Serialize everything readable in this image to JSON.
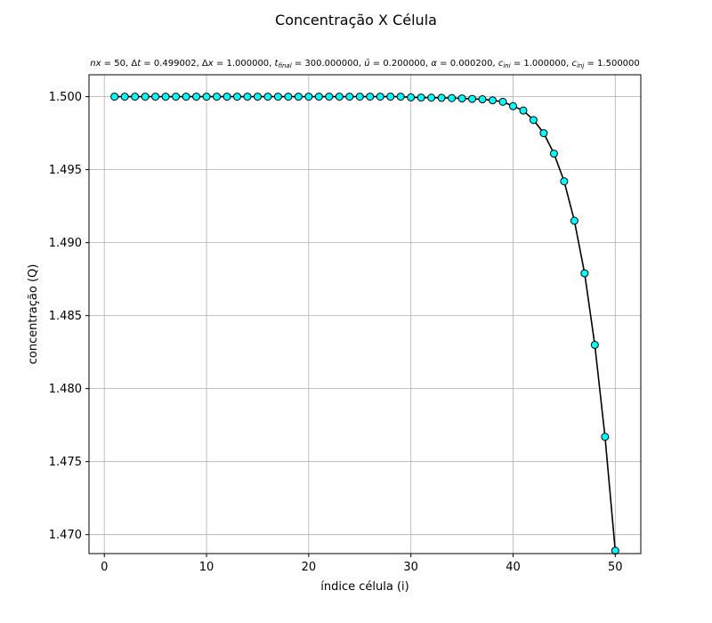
{
  "chart_data": {
    "type": "line",
    "title": "Concentração X Célula",
    "subtitle": "nx = 50, Δt = 0.499002, Δx = 1.000000, t_final = 300.000000, ū = 0.200000, α = 0.000200, c_ini = 1.000000, c_inj = 1.500000",
    "subtitle_parts": {
      "nx": "50",
      "dt": "0.499002",
      "dx": "1.000000",
      "t_final": "300.000000",
      "u": "0.200000",
      "alpha": "0.000200",
      "c_ini": "1.000000",
      "c_inj": "1.500000"
    },
    "xlabel": "índice célula (i)",
    "ylabel": "concentração (Q)",
    "xlim": [
      -1.5,
      52.5
    ],
    "ylim": [
      1.4687,
      1.5015
    ],
    "xticks": [
      0,
      10,
      20,
      30,
      40,
      50
    ],
    "yticks": [
      1.47,
      1.475,
      1.48,
      1.485,
      1.49,
      1.495,
      1.5
    ],
    "xtick_labels": [
      "0",
      "10",
      "20",
      "30",
      "40",
      "50"
    ],
    "ytick_labels": [
      "1.470",
      "1.475",
      "1.480",
      "1.485",
      "1.490",
      "1.495",
      "1.500"
    ],
    "grid": true,
    "line_color": "#000000",
    "marker_face": "#00ffff",
    "marker_edge": "#000000",
    "x": [
      1,
      2,
      3,
      4,
      5,
      6,
      7,
      8,
      9,
      10,
      11,
      12,
      13,
      14,
      15,
      16,
      17,
      18,
      19,
      20,
      21,
      22,
      23,
      24,
      25,
      26,
      27,
      28,
      29,
      30,
      31,
      32,
      33,
      34,
      35,
      36,
      37,
      38,
      39,
      40,
      41,
      42,
      43,
      44,
      45,
      46,
      47,
      48,
      49,
      50
    ],
    "y": [
      1.5,
      1.5,
      1.5,
      1.5,
      1.5,
      1.5,
      1.5,
      1.5,
      1.5,
      1.5,
      1.5,
      1.5,
      1.5,
      1.5,
      1.5,
      1.5,
      1.5,
      1.5,
      1.5,
      1.5,
      1.5,
      1.5,
      1.5,
      1.5,
      1.5,
      1.5,
      1.5,
      1.5,
      1.5,
      1.49995,
      1.49994,
      1.49993,
      1.49992,
      1.4999,
      1.49988,
      1.49985,
      1.49982,
      1.49975,
      1.49965,
      1.49935,
      1.49905,
      1.4984,
      1.4975,
      1.4961,
      1.4942,
      1.4915,
      1.4879,
      1.483,
      1.4767,
      1.4689
    ]
  }
}
